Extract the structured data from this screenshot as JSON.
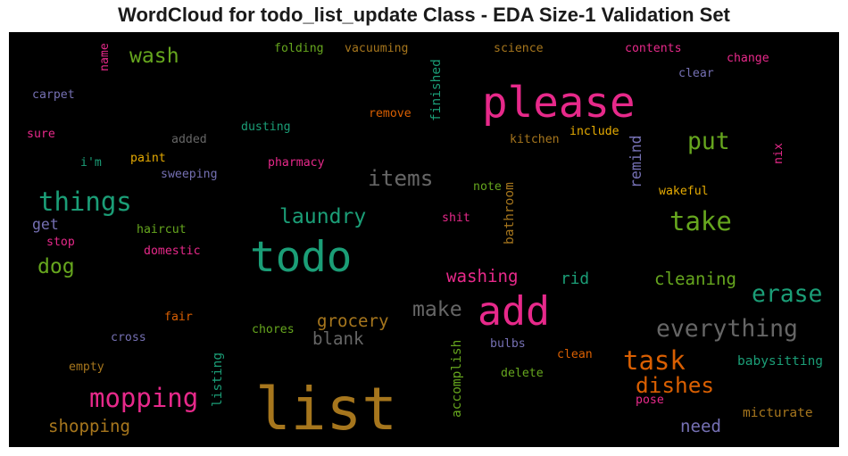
{
  "chart_data": {
    "type": "wordcloud",
    "title": "WordCloud for todo_list_update Class - EDA Size-1 Validation Set",
    "background": "#000000",
    "words": [
      {
        "text": "list",
        "weight": 1.0,
        "color": "#a6761d",
        "vertical": false
      },
      {
        "text": "todo",
        "weight": 0.72,
        "color": "#1b9e77",
        "vertical": false
      },
      {
        "text": "please",
        "weight": 0.72,
        "color": "#e7298a",
        "vertical": false
      },
      {
        "text": "add",
        "weight": 0.68,
        "color": "#e7298a",
        "vertical": false
      },
      {
        "text": "things",
        "weight": 0.44,
        "color": "#1b9e77",
        "vertical": false
      },
      {
        "text": "take",
        "weight": 0.44,
        "color": "#66a61e",
        "vertical": false
      },
      {
        "text": "mopping",
        "weight": 0.44,
        "color": "#e7298a",
        "vertical": false
      },
      {
        "text": "task",
        "weight": 0.44,
        "color": "#d95f02",
        "vertical": false
      },
      {
        "text": "erase",
        "weight": 0.4,
        "color": "#1b9e77",
        "vertical": false
      },
      {
        "text": "everything",
        "weight": 0.4,
        "color": "#666666",
        "vertical": false
      },
      {
        "text": "put",
        "weight": 0.4,
        "color": "#66a61e",
        "vertical": false
      },
      {
        "text": "items",
        "weight": 0.37,
        "color": "#666666",
        "vertical": false
      },
      {
        "text": "dishes",
        "weight": 0.37,
        "color": "#d95f02",
        "vertical": false
      },
      {
        "text": "laundry",
        "weight": 0.35,
        "color": "#1b9e77",
        "vertical": false
      },
      {
        "text": "make",
        "weight": 0.35,
        "color": "#666666",
        "vertical": false
      },
      {
        "text": "wash",
        "weight": 0.35,
        "color": "#66a61e",
        "vertical": false
      },
      {
        "text": "dog",
        "weight": 0.35,
        "color": "#66a61e",
        "vertical": false
      },
      {
        "text": "cleaning",
        "weight": 0.29,
        "color": "#66a61e",
        "vertical": false
      },
      {
        "text": "grocery",
        "weight": 0.29,
        "color": "#a6761d",
        "vertical": false
      },
      {
        "text": "blank",
        "weight": 0.29,
        "color": "#666666",
        "vertical": false
      },
      {
        "text": "washing",
        "weight": 0.29,
        "color": "#e7298a",
        "vertical": false
      },
      {
        "text": "shopping",
        "weight": 0.29,
        "color": "#a6761d",
        "vertical": false
      },
      {
        "text": "need",
        "weight": 0.29,
        "color": "#7570b3",
        "vertical": false
      },
      {
        "text": "rid",
        "weight": 0.27,
        "color": "#1b9e77",
        "vertical": false
      },
      {
        "text": "get",
        "weight": 0.25,
        "color": "#7570b3",
        "vertical": false
      },
      {
        "text": "remind",
        "weight": 0.25,
        "color": "#7570b3",
        "vertical": true
      },
      {
        "text": "micturate",
        "weight": 0.22,
        "color": "#a6761d",
        "vertical": false
      },
      {
        "text": "babysitting",
        "weight": 0.22,
        "color": "#1b9e77",
        "vertical": false
      },
      {
        "text": "finished",
        "weight": 0.22,
        "color": "#1b9e77",
        "vertical": true
      },
      {
        "text": "accomplish",
        "weight": 0.22,
        "color": "#66a61e",
        "vertical": true
      },
      {
        "text": "bathroom",
        "weight": 0.22,
        "color": "#a6761d",
        "vertical": true
      },
      {
        "text": "listing",
        "weight": 0.22,
        "color": "#1b9e77",
        "vertical": true
      },
      {
        "text": "name",
        "weight": 0.2,
        "color": "#e7298a",
        "vertical": true
      },
      {
        "text": "nix",
        "weight": 0.2,
        "color": "#e7298a",
        "vertical": true
      },
      {
        "text": "dusting",
        "weight": 0.2,
        "color": "#1b9e77",
        "vertical": false
      },
      {
        "text": "folding",
        "weight": 0.2,
        "color": "#66a61e",
        "vertical": false
      },
      {
        "text": "vacuuming",
        "weight": 0.2,
        "color": "#a6761d",
        "vertical": false
      },
      {
        "text": "science",
        "weight": 0.2,
        "color": "#a6761d",
        "vertical": false
      },
      {
        "text": "contents",
        "weight": 0.2,
        "color": "#e7298a",
        "vertical": false
      },
      {
        "text": "change",
        "weight": 0.2,
        "color": "#e7298a",
        "vertical": false
      },
      {
        "text": "clear",
        "weight": 0.2,
        "color": "#7570b3",
        "vertical": false
      },
      {
        "text": "carpet",
        "weight": 0.2,
        "color": "#7570b3",
        "vertical": false
      },
      {
        "text": "remove",
        "weight": 0.2,
        "color": "#d95f02",
        "vertical": false
      },
      {
        "text": "added",
        "weight": 0.2,
        "color": "#666666",
        "vertical": false
      },
      {
        "text": "kitchen",
        "weight": 0.2,
        "color": "#a6761d",
        "vertical": false
      },
      {
        "text": "include",
        "weight": 0.2,
        "color": "#e6ab02",
        "vertical": false
      },
      {
        "text": "sure",
        "weight": 0.2,
        "color": "#e7298a",
        "vertical": false
      },
      {
        "text": "i'm",
        "weight": 0.2,
        "color": "#1b9e77",
        "vertical": false
      },
      {
        "text": "paint",
        "weight": 0.2,
        "color": "#e6ab02",
        "vertical": false
      },
      {
        "text": "pharmacy",
        "weight": 0.2,
        "color": "#e7298a",
        "vertical": false
      },
      {
        "text": "sweeping",
        "weight": 0.2,
        "color": "#7570b3",
        "vertical": false
      },
      {
        "text": "note",
        "weight": 0.2,
        "color": "#66a61e",
        "vertical": false
      },
      {
        "text": "wakeful",
        "weight": 0.2,
        "color": "#e6ab02",
        "vertical": false
      },
      {
        "text": "haircut",
        "weight": 0.2,
        "color": "#66a61e",
        "vertical": false
      },
      {
        "text": "shit",
        "weight": 0.2,
        "color": "#e7298a",
        "vertical": false
      },
      {
        "text": "stop",
        "weight": 0.2,
        "color": "#e7298a",
        "vertical": false
      },
      {
        "text": "domestic",
        "weight": 0.2,
        "color": "#e7298a",
        "vertical": false
      },
      {
        "text": "fair",
        "weight": 0.2,
        "color": "#d95f02",
        "vertical": false
      },
      {
        "text": "chores",
        "weight": 0.2,
        "color": "#66a61e",
        "vertical": false
      },
      {
        "text": "cross",
        "weight": 0.2,
        "color": "#7570b3",
        "vertical": false
      },
      {
        "text": "bulbs",
        "weight": 0.2,
        "color": "#7570b3",
        "vertical": false
      },
      {
        "text": "clean",
        "weight": 0.2,
        "color": "#d95f02",
        "vertical": false
      },
      {
        "text": "empty",
        "weight": 0.2,
        "color": "#a6761d",
        "vertical": false
      },
      {
        "text": "delete",
        "weight": 0.2,
        "color": "#66a61e",
        "vertical": false
      },
      {
        "text": "pose",
        "weight": 0.2,
        "color": "#e7298a",
        "vertical": false
      }
    ]
  }
}
